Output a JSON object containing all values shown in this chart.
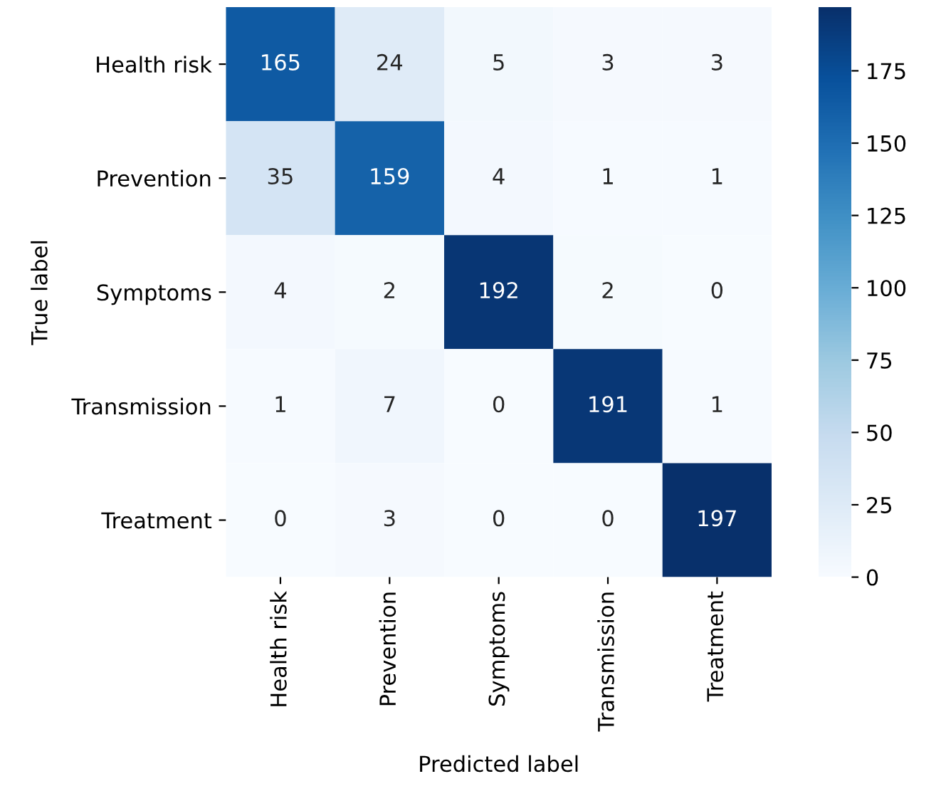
{
  "chart_data": {
    "type": "heatmap",
    "xlabel": "Predicted label",
    "ylabel": "True label",
    "categories": [
      "Health risk",
      "Prevention",
      "Symptoms",
      "Transmission",
      "Treatment"
    ],
    "y_categories": [
      "Health risk",
      "Prevention",
      "Symptoms",
      "Transmission",
      "Treatment"
    ],
    "cells": [
      [
        165,
        24,
        5,
        3,
        3
      ],
      [
        35,
        159,
        4,
        1,
        1
      ],
      [
        4,
        2,
        192,
        2,
        0
      ],
      [
        1,
        7,
        0,
        191,
        1
      ],
      [
        0,
        3,
        0,
        0,
        197
      ]
    ],
    "data_labels": true,
    "clim": [
      0,
      197
    ],
    "cticks": [
      0,
      25,
      50,
      75,
      100,
      125,
      150,
      175
    ]
  }
}
